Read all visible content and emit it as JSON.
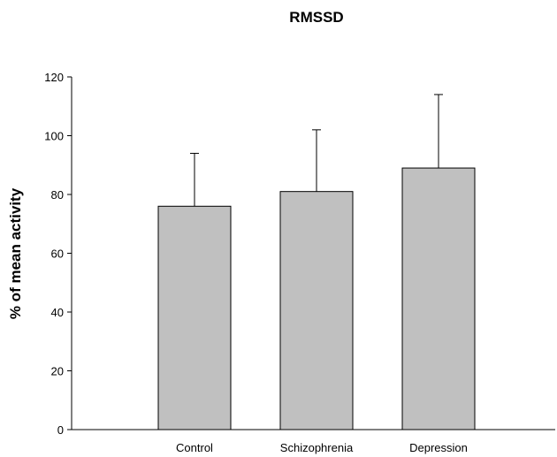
{
  "chart_data": {
    "type": "bar",
    "title": "RMSSD",
    "xlabel": "",
    "ylabel": "% of mean activity",
    "categories": [
      "Control",
      "Schizophrenia",
      "Depression"
    ],
    "values": [
      76,
      81,
      89
    ],
    "error_upper": [
      94,
      102,
      114
    ],
    "ylim": [
      0,
      120
    ],
    "yticks": [
      "0",
      "20",
      "40",
      "60",
      "80",
      "100",
      "120"
    ],
    "grid": false,
    "bar_color": "#c0c0c0"
  }
}
